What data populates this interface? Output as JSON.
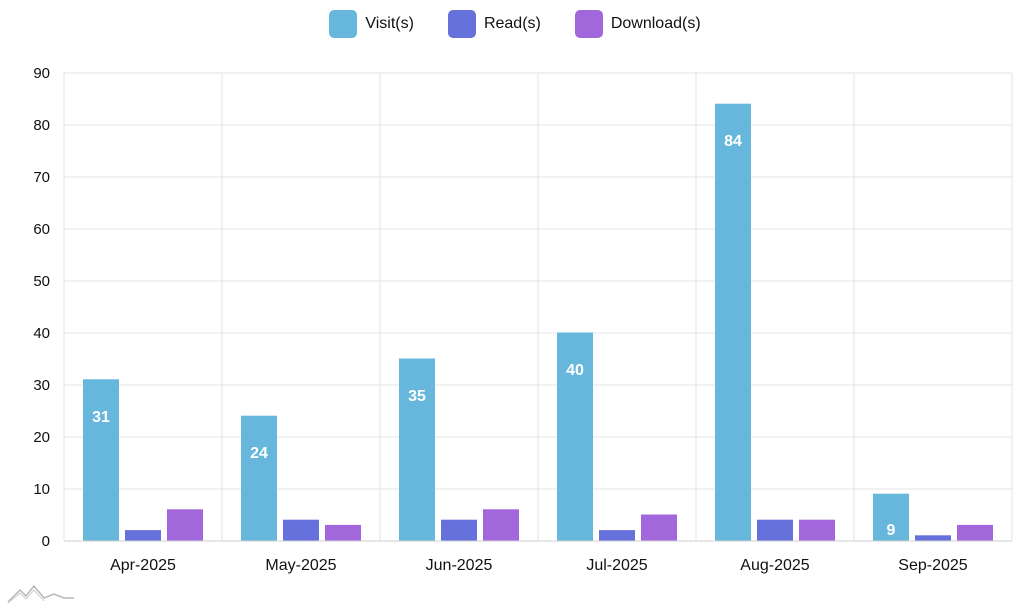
{
  "chart_data": {
    "type": "bar",
    "title": "",
    "xlabel": "",
    "ylabel": "",
    "categories": [
      "Apr-2025",
      "May-2025",
      "Jun-2025",
      "Jul-2025",
      "Aug-2025",
      "Sep-2025"
    ],
    "series": [
      {
        "name": "Visit(s)",
        "color": "#67b7dc",
        "values": [
          31,
          24,
          35,
          40,
          84,
          9
        ]
      },
      {
        "name": "Read(s)",
        "color": "#6771dc",
        "values": [
          2,
          4,
          4,
          2,
          4,
          1
        ]
      },
      {
        "name": "Download(s)",
        "color": "#a367dc",
        "values": [
          6,
          3,
          6,
          5,
          4,
          3
        ]
      }
    ],
    "ylim": [
      0,
      90
    ],
    "yticks": [
      0,
      10,
      20,
      30,
      40,
      50,
      60,
      70,
      80,
      90
    ],
    "grid": true,
    "legend_position": "top-center",
    "data_labels_series": "Visit(s)"
  },
  "logo": {
    "icon": "amcharts-logo-icon"
  }
}
